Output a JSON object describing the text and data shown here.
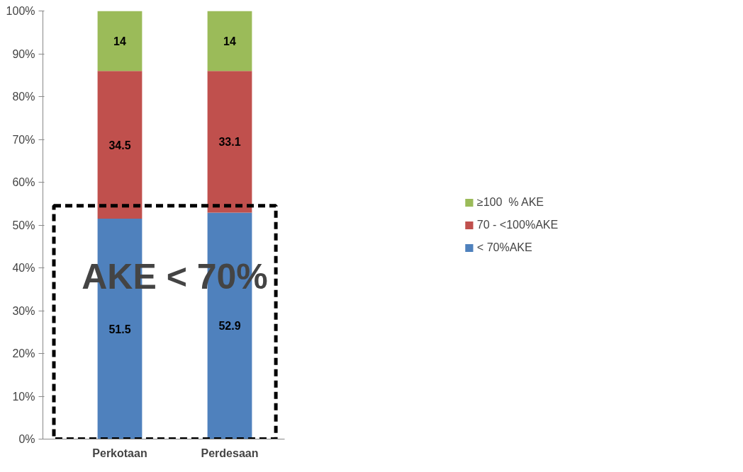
{
  "chart_data": {
    "type": "bar",
    "stacked": true,
    "categories": [
      "Perkotaan",
      "Perdesaan"
    ],
    "series": [
      {
        "name": "< 70%AKE",
        "color": "#4f81bd",
        "values": [
          51.5,
          52.9
        ]
      },
      {
        "name": "70 - <100%AKE",
        "color": "#c0504d",
        "values": [
          34.5,
          33.1
        ]
      },
      {
        "name": "≥100  % AKE",
        "color": "#9bbb59",
        "values": [
          14,
          14
        ]
      }
    ],
    "ylim": [
      0,
      100
    ],
    "yticks": [
      {
        "value": 0,
        "label": "0%"
      },
      {
        "value": 10,
        "label": "10%"
      },
      {
        "value": 20,
        "label": "20%"
      },
      {
        "value": 30,
        "label": "30%"
      },
      {
        "value": 40,
        "label": "40%"
      },
      {
        "value": 50,
        "label": "50%"
      },
      {
        "value": 60,
        "label": "60%"
      },
      {
        "value": 70,
        "label": "70%"
      },
      {
        "value": 80,
        "label": "80%"
      },
      {
        "value": 90,
        "label": "90%"
      },
      {
        "value": 100,
        "label": "100%"
      }
    ],
    "data_labels": true,
    "legend": "right",
    "grid": false,
    "annotations": [
      "AKE < 70%"
    ]
  }
}
